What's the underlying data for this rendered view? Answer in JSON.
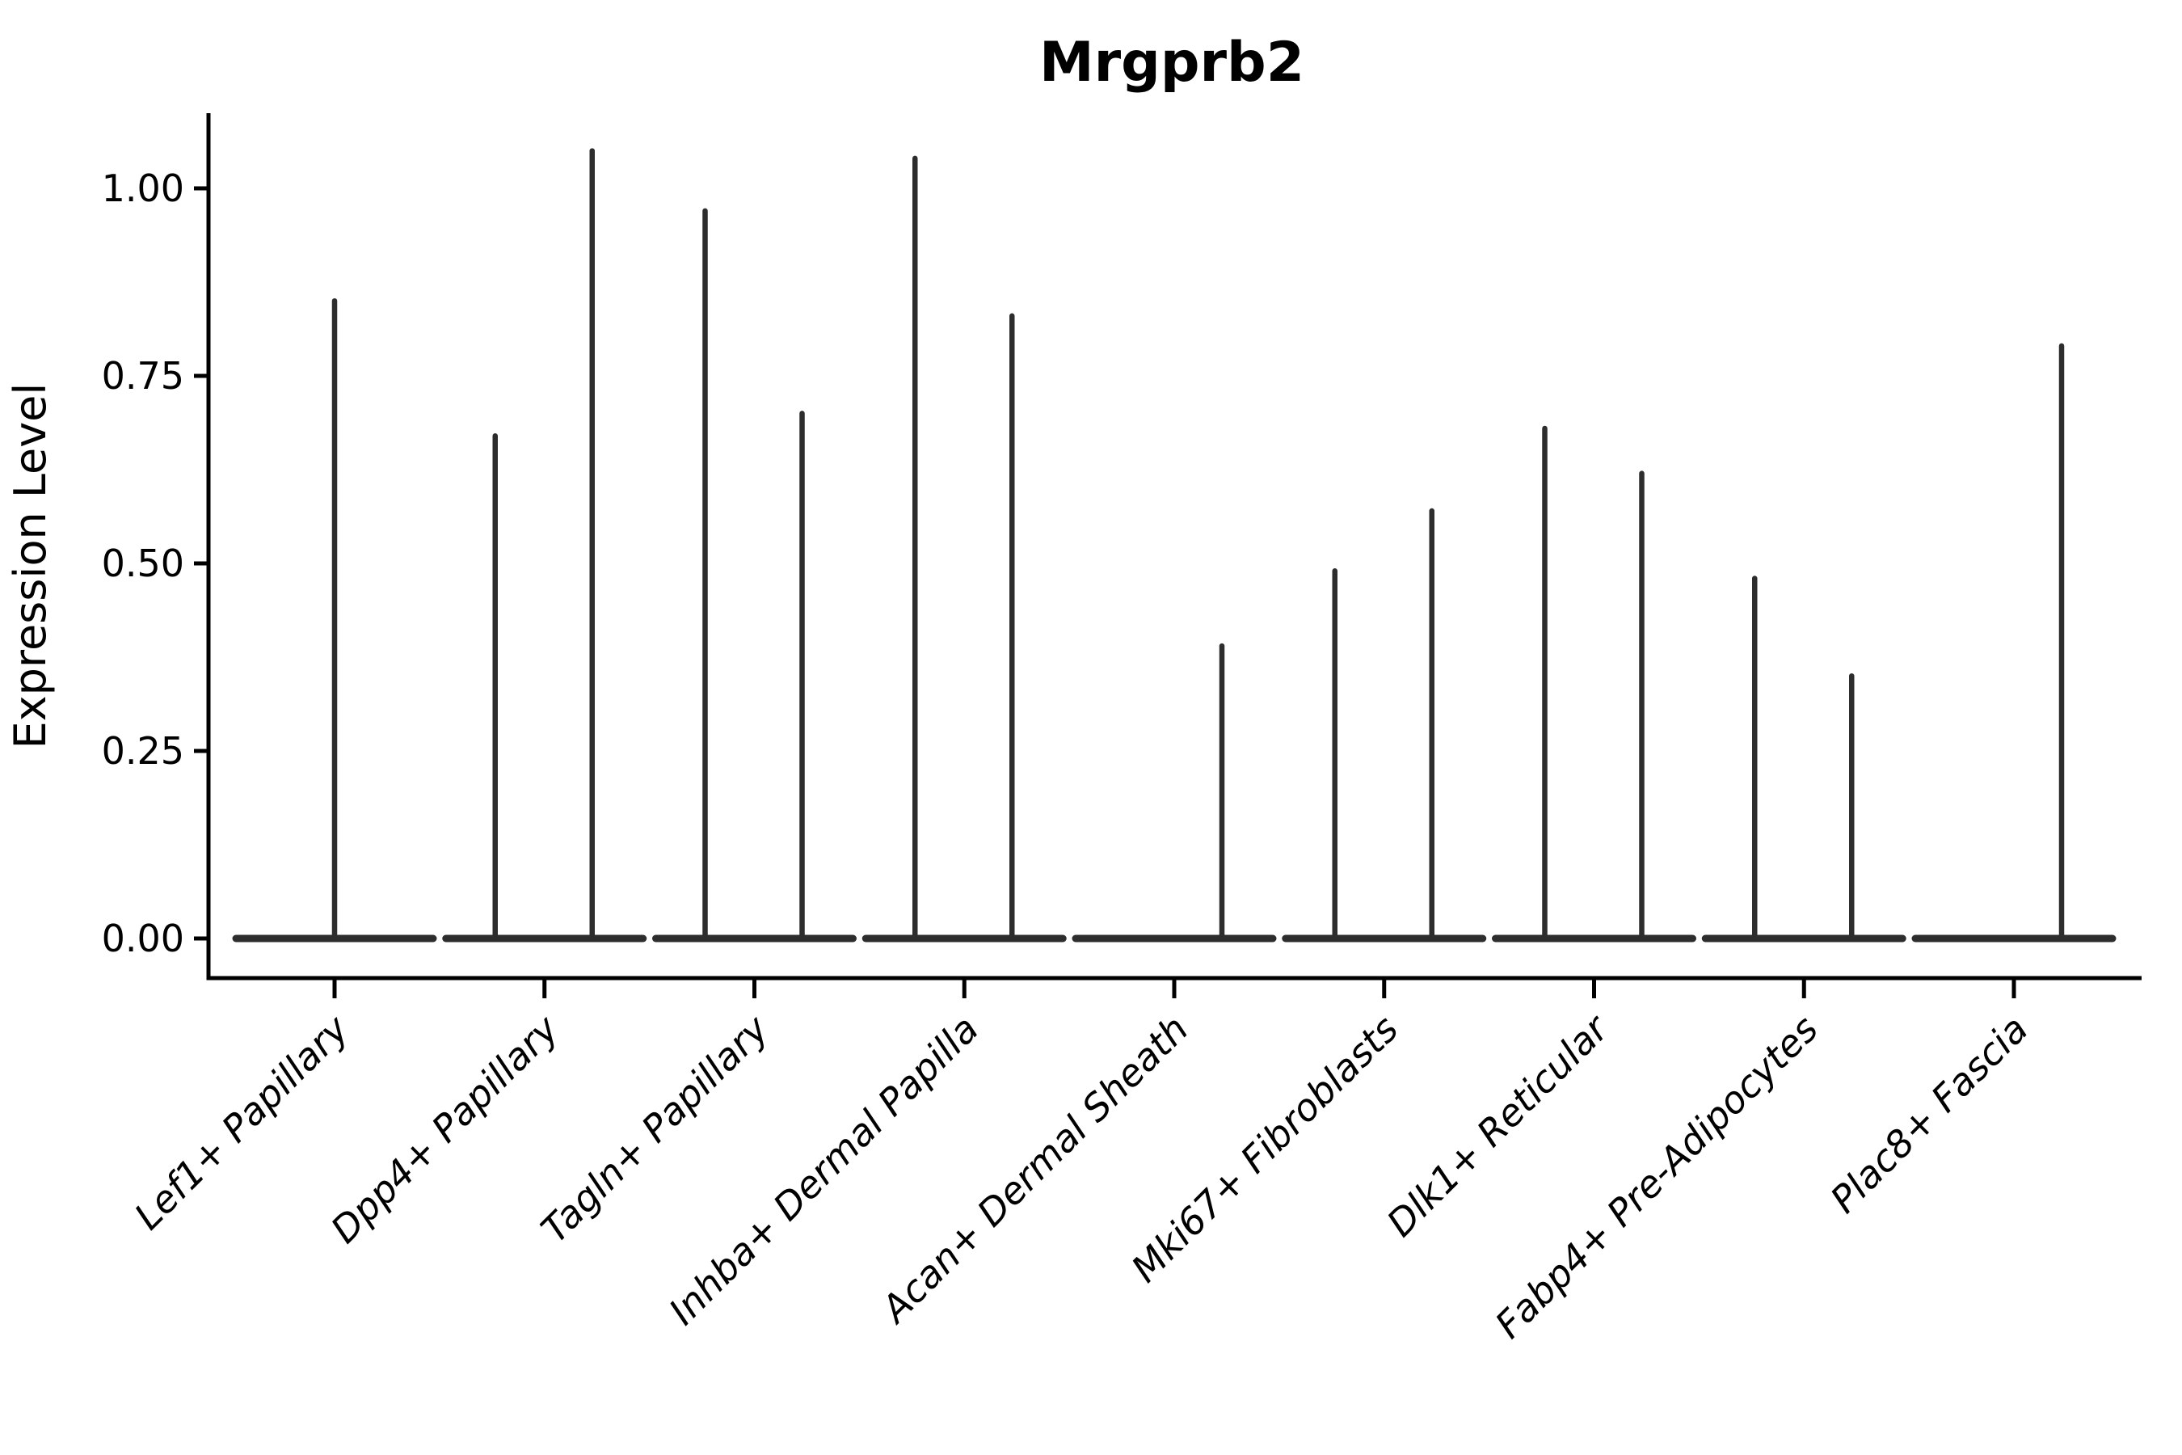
{
  "title": "Mrgprb2",
  "chart_data": {
    "type": "violin",
    "title": "Mrgprb2",
    "xlabel": "",
    "ylabel": "Expression Level",
    "ylim": [
      -0.05,
      1.1
    ],
    "grid": false,
    "legend_position": "none",
    "ytick_values": [
      0.0,
      0.25,
      0.5,
      0.75,
      1.0
    ],
    "ytick_labels": [
      "0.00",
      "0.25",
      "0.50",
      "0.75",
      "1.00"
    ],
    "categories": [
      "Lef1+ Papillary",
      "Dpp4+ Papillary",
      "Tagln+ Papillary",
      "Inhba+ Dermal Papilla",
      "Acan+ Dermal Sheath",
      "Mki67+ Fibroblasts",
      "Dlk1+ Reticular",
      "Fabp4+ Pre-Adipocytes",
      "Plac8+ Fascia"
    ],
    "distribution_note": "Expression is concentrated at 0 for every cluster: each violin renders as a flat body at 0.00 with a thin vertical tail rising to the cluster maximum. Six clusters show two dodged violins (left/right group); three clusters show a single spike.",
    "violins": [
      {
        "category": "Lef1+ Papillary",
        "spikes": [
          {
            "offset": "center",
            "max": 0.85
          }
        ]
      },
      {
        "category": "Dpp4+ Papillary",
        "spikes": [
          {
            "offset": "left",
            "max": 0.67
          },
          {
            "offset": "right",
            "max": 1.05
          }
        ]
      },
      {
        "category": "Tagln+ Papillary",
        "spikes": [
          {
            "offset": "left",
            "max": 0.97
          },
          {
            "offset": "right",
            "max": 0.7
          }
        ]
      },
      {
        "category": "Inhba+ Dermal Papilla",
        "spikes": [
          {
            "offset": "left",
            "max": 1.04
          },
          {
            "offset": "right",
            "max": 0.83
          }
        ]
      },
      {
        "category": "Acan+ Dermal Sheath",
        "spikes": [
          {
            "offset": "right",
            "max": 0.39
          }
        ]
      },
      {
        "category": "Mki67+ Fibroblasts",
        "spikes": [
          {
            "offset": "left",
            "max": 0.49
          },
          {
            "offset": "right",
            "max": 0.57
          }
        ]
      },
      {
        "category": "Dlk1+ Reticular",
        "spikes": [
          {
            "offset": "left",
            "max": 0.68
          },
          {
            "offset": "right",
            "max": 0.62
          }
        ]
      },
      {
        "category": "Fabp4+ Pre-Adipocytes",
        "spikes": [
          {
            "offset": "left",
            "max": 0.48
          },
          {
            "offset": "right",
            "max": 0.35
          }
        ]
      },
      {
        "category": "Plac8+ Fascia",
        "spikes": [
          {
            "offset": "right",
            "max": 0.79
          }
        ]
      }
    ],
    "colors": {
      "violin": "#2d2d2d",
      "axis": "#000000",
      "text": "#000000",
      "background": "#ffffff"
    }
  }
}
